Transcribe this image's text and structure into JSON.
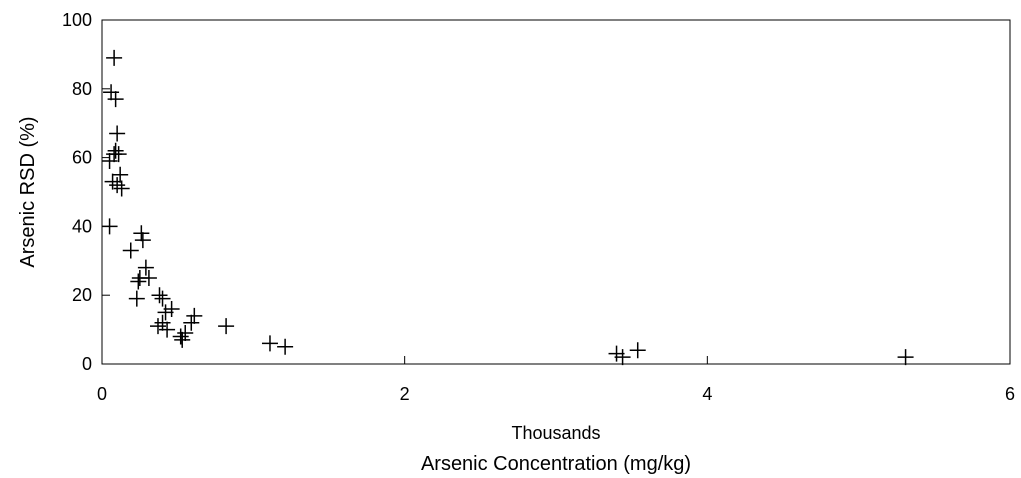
{
  "chart_data": {
    "type": "scatter",
    "title": "",
    "xlabel": "Arsenic Concentration (mg/kg)",
    "xunit_note": "Thousands",
    "ylabel": "Arsenic RSD (%)",
    "xlim": [
      0,
      6
    ],
    "ylim": [
      0,
      100
    ],
    "xticks": [
      "0",
      "2",
      "4",
      "6"
    ],
    "yticks": [
      "0",
      "20",
      "40",
      "60",
      "80",
      "100"
    ],
    "grid": false,
    "legend": "none",
    "marker": "plus",
    "series": [
      {
        "x": [
          0.08,
          0.06,
          0.09,
          0.1,
          0.09,
          0.05,
          0.08,
          0.12,
          0.07,
          0.1,
          0.11,
          0.13,
          0.05,
          0.26,
          0.27,
          0.19,
          0.25,
          0.29,
          0.31,
          0.23,
          0.24,
          0.38,
          0.4,
          0.42,
          0.37,
          0.4,
          0.46,
          0.43,
          0.52,
          0.55,
          0.53,
          0.59,
          0.61,
          0.82,
          1.11,
          1.21,
          3.4,
          3.44,
          3.54,
          5.31
        ],
        "y": [
          89,
          79,
          77,
          67,
          62,
          59,
          61,
          55,
          53,
          52,
          61,
          51,
          40,
          38,
          36,
          33,
          25,
          28,
          25,
          19,
          24,
          20,
          19,
          15,
          11,
          12,
          16,
          10,
          8,
          9,
          7,
          12,
          14,
          11,
          6,
          5,
          3,
          2,
          4,
          2
        ]
      }
    ]
  }
}
